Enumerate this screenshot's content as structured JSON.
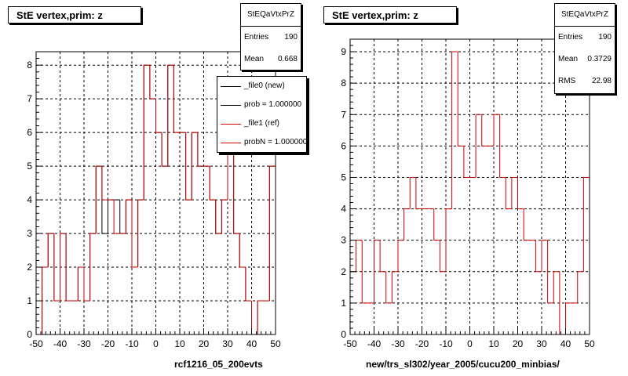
{
  "chart_data": [
    {
      "type": "histogram",
      "title": "StE  vertex,prim: z",
      "xlabel": "rcf1216_05_200evts",
      "xlim": [
        -50,
        50
      ],
      "ylim": [
        0,
        8.4
      ],
      "x_ticks": [
        -50,
        -40,
        -30,
        -20,
        -10,
        0,
        10,
        20,
        30,
        40,
        50
      ],
      "y_ticks": [
        0,
        1,
        2,
        3,
        4,
        5,
        6,
        7,
        8
      ],
      "grid": true,
      "bins": 40,
      "series": [
        {
          "name": "_file0 (new)",
          "color": "#000000",
          "values": [
            0,
            2,
            3,
            1,
            3,
            1,
            1,
            2,
            1,
            3,
            5,
            3,
            4,
            4,
            3,
            4,
            2,
            4,
            8,
            7,
            6,
            5,
            8,
            6,
            6,
            4,
            6,
            5,
            5,
            4,
            3,
            4,
            6,
            3,
            2,
            1,
            0,
            1,
            1,
            5
          ]
        },
        {
          "name": "_file1 (ref)",
          "color": "#cc0000",
          "values": [
            0,
            2,
            3,
            1,
            3,
            1,
            1,
            2,
            1,
            3,
            5,
            4,
            4,
            3,
            3,
            4,
            2,
            4,
            8,
            7,
            6,
            5,
            8,
            6,
            6,
            4,
            6,
            5,
            5,
            4,
            3,
            4,
            6,
            3,
            2,
            1,
            0,
            1,
            1,
            5
          ]
        }
      ],
      "legend": {
        "placement": "top-right",
        "entries": [
          "_file0 (new)",
          "prob = 1.000000",
          "_file1 (ref)",
          "probN = 1.000000"
        ],
        "colors": [
          "#000000",
          "#000000",
          "#cc0000",
          "#cc0000"
        ]
      },
      "stats": {
        "name": "StEQaVtxPrZ",
        "rows": [
          {
            "label": "Entries",
            "value": "190"
          },
          {
            "label": "Mean",
            "value": "0.668"
          }
        ]
      }
    },
    {
      "type": "histogram",
      "title": "StE  vertex,prim: z",
      "xlabel": "new/trs_sl302/year_2005/cucu200_minbias/",
      "xlim": [
        -50,
        50
      ],
      "ylim": [
        0,
        9.4
      ],
      "x_ticks": [
        -50,
        -40,
        -30,
        -20,
        -10,
        0,
        10,
        20,
        30,
        40,
        50
      ],
      "y_ticks": [
        0,
        1,
        2,
        3,
        4,
        5,
        6,
        7,
        8,
        9
      ],
      "grid": true,
      "bins": 40,
      "series": [
        {
          "name": "",
          "color": "#cc0000",
          "values": [
            2,
            3,
            1,
            1,
            3,
            2,
            1,
            2,
            3,
            4,
            5,
            4,
            4,
            4,
            3,
            2,
            4,
            9,
            6,
            5,
            5,
            7,
            6,
            6,
            7,
            5,
            4,
            5,
            4,
            3,
            3,
            2,
            3,
            1,
            2,
            0,
            1,
            1,
            2,
            5
          ]
        }
      ],
      "stats": {
        "name": "StEQaVtxPrZ",
        "rows": [
          {
            "label": "Entries",
            "value": "190"
          },
          {
            "label": "Mean",
            "value": "0.3729"
          },
          {
            "label": "RMS",
            "value": "22.98"
          }
        ]
      }
    }
  ]
}
